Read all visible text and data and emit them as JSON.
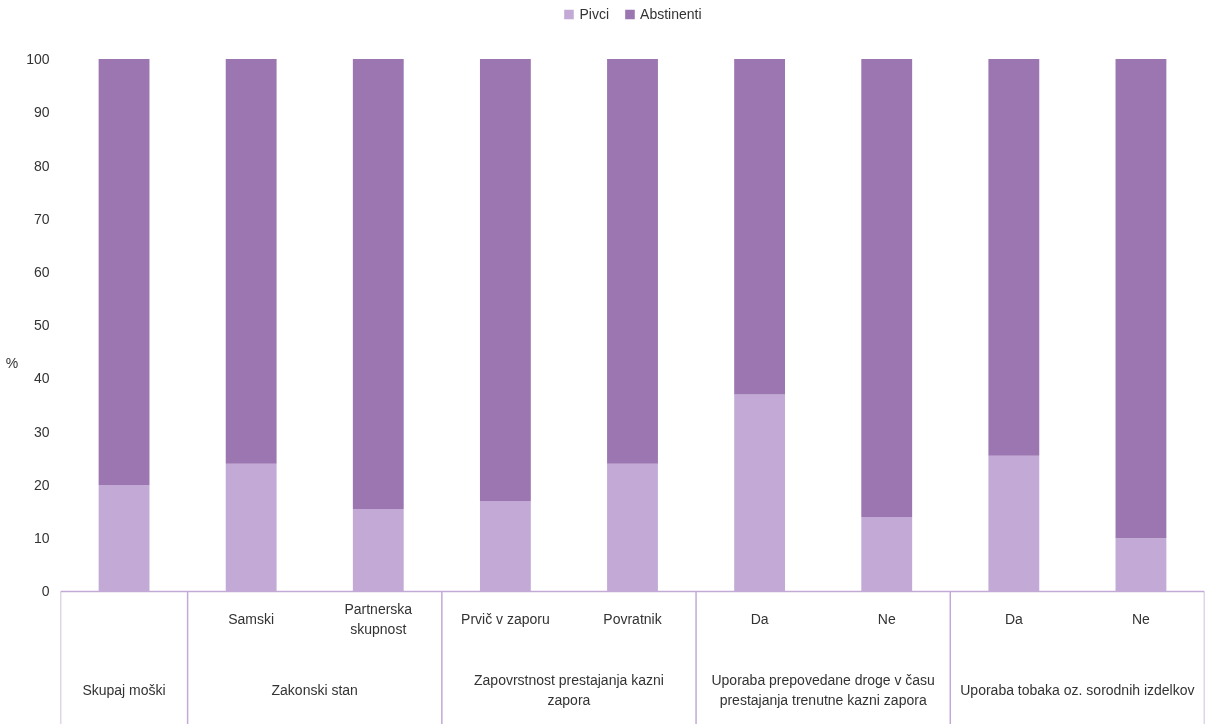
{
  "chart_data": {
    "type": "bar",
    "stacked": true,
    "ylabel": "%",
    "categories": [
      null,
      "Samski",
      "Partnerska skupnost",
      "Prvič v zaporu",
      "Povratnik",
      "Da",
      "Ne",
      "Da",
      "Ne"
    ],
    "annotations": [
      "Skupaj moški",
      "Zakonski stan",
      "Zapovrstnost prestajanja kazni zapora",
      "Uporaba prepovedane droge v času prestajanja trenutne kazni zapora",
      "Uporaba tobaka oz. sorodnih izdelkov"
    ],
    "series": [
      {
        "name": "Pivci",
        "color": "#c3aad6",
        "values": [
          20,
          24,
          15.5,
          17,
          24,
          37,
          14,
          25.5,
          10
        ]
      },
      {
        "name": "Abstinenti",
        "color": "#9b76b0",
        "values": [
          80,
          76,
          84.5,
          83,
          76,
          63,
          86,
          74.5,
          90
        ]
      }
    ],
    "ylim": [
      0,
      100
    ],
    "yticks": [
      0,
      10,
      20,
      30,
      40,
      50,
      60,
      70,
      80,
      90,
      100
    ],
    "grid": false,
    "legend": "top"
  }
}
